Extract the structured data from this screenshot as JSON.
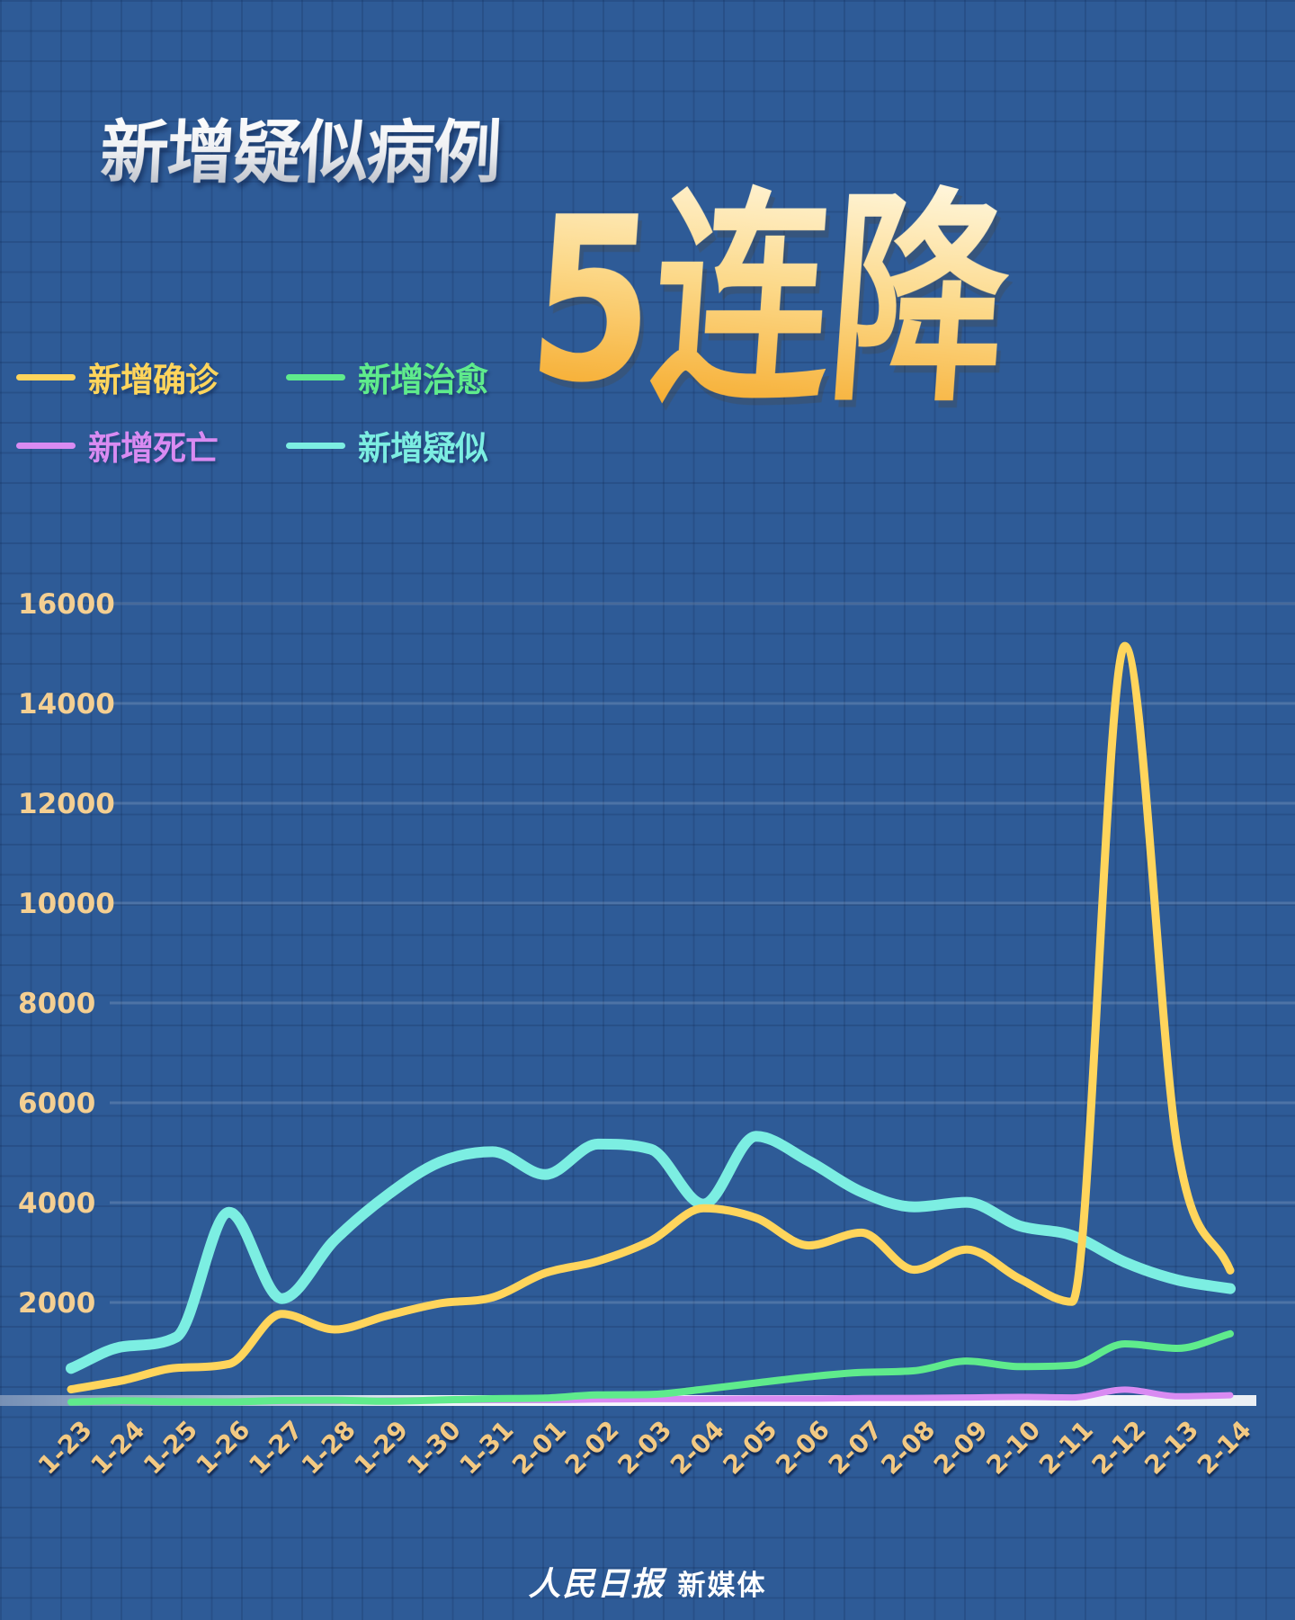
{
  "title": "新增疑似病例",
  "headline": "5连降",
  "legend": [
    {
      "label": "新增确诊",
      "color": "#FFD55C"
    },
    {
      "label": "新增治愈",
      "color": "#5FEB8C"
    },
    {
      "label": "新增死亡",
      "color": "#D98BF2"
    },
    {
      "label": "新增疑似",
      "color": "#7CEEE2"
    }
  ],
  "footer": {
    "brand_script": "人民日报",
    "brand_suffix": "新媒体"
  },
  "colors": {
    "background": "#2E5B97",
    "axis_label": "#F4CF92",
    "date_label": "#F2C983",
    "headline_gradient_top": "#FFF6DC",
    "headline_gradient_bottom": "#F5A623"
  },
  "chart_data": {
    "type": "line",
    "x": [
      "1-23",
      "1-24",
      "1-25",
      "1-26",
      "1-27",
      "1-28",
      "1-29",
      "1-30",
      "1-31",
      "2-01",
      "2-02",
      "2-03",
      "2-04",
      "2-05",
      "2-06",
      "2-07",
      "2-08",
      "2-09",
      "2-10",
      "2-11",
      "2-12",
      "2-13",
      "2-14"
    ],
    "series": [
      {
        "name": "新增确诊",
        "color": "#FFD55C",
        "values": [
          259,
          444,
          688,
          769,
          1771,
          1459,
          1737,
          1982,
          2102,
          2590,
          2829,
          3235,
          3887,
          3694,
          3143,
          3399,
          2656,
          3062,
          2478,
          2015,
          15152,
          5090,
          2641
        ]
      },
      {
        "name": "新增治愈",
        "color": "#5FEB8C",
        "values": [
          6,
          31,
          11,
          9,
          38,
          43,
          21,
          47,
          72,
          85,
          147,
          157,
          262,
          387,
          510,
          600,
          632,
          827,
          716,
          744,
          1171,
          1081,
          1373
        ]
      },
      {
        "name": "新增死亡",
        "color": "#D98BF2",
        "values": [
          8,
          16,
          15,
          24,
          26,
          26,
          38,
          43,
          46,
          45,
          57,
          64,
          65,
          73,
          73,
          86,
          89,
          97,
          108,
          97,
          254,
          121,
          143
        ]
      },
      {
        "name": "新增疑似",
        "color": "#7CEEE2",
        "values": [
          680,
          1118,
          1309,
          3806,
          2077,
          3248,
          4148,
          4812,
          5019,
          4562,
          5173,
          5072,
          3971,
          5328,
          4833,
          4214,
          3916,
          4008,
          3536,
          3342,
          2807,
          2450,
          2277
        ]
      }
    ],
    "ylim": [
      0,
      16000
    ],
    "yticks": [
      2000,
      4000,
      6000,
      8000,
      10000,
      12000,
      14000,
      16000
    ],
    "grid": true,
    "legend_position": "top-left",
    "x_axis_highlighted": true
  }
}
